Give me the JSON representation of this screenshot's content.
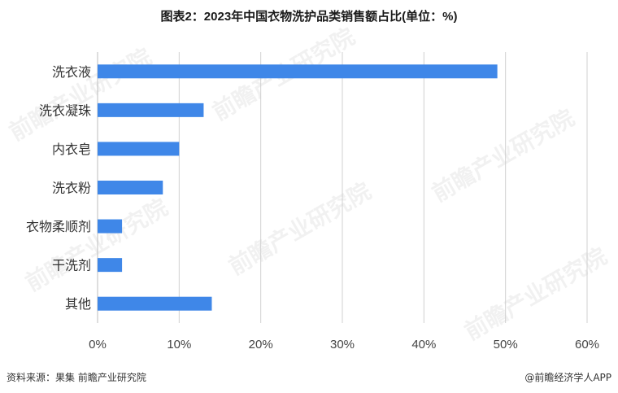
{
  "title": "图表2：2023年中国衣物洗护品类销售额占比(单位：%)",
  "footer": {
    "source": "资料来源：果集 前瞻产业研究院",
    "brand": "@前瞻经济学人APP"
  },
  "watermark": "前瞻产业研究院",
  "colors": {
    "bar": "#3f87e8",
    "grid": "#d0d0d0"
  },
  "chart_data": {
    "type": "bar",
    "orientation": "horizontal",
    "categories": [
      "洗衣液",
      "洗衣凝珠",
      "内衣皂",
      "洗衣粉",
      "衣物柔顺剂",
      "干洗剂",
      "其他"
    ],
    "values": [
      49,
      13,
      10,
      8,
      3,
      3,
      14
    ],
    "xlim": [
      0,
      60
    ],
    "xticks": [
      "0%",
      "10%",
      "20%",
      "30%",
      "40%",
      "50%",
      "60%"
    ],
    "xtick_values": [
      0,
      10,
      20,
      30,
      40,
      50,
      60
    ],
    "grid": "vertical"
  }
}
